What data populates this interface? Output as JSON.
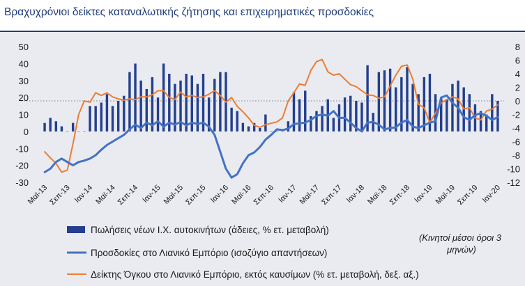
{
  "title": "Βραχυχρόνιοι δείκτες καταναλωτικής ζήτησης και επιχειρηματικές προσδοκίες",
  "note_line1": "(Κινητοί μέσοι όροι 3",
  "note_line2": "μηνών)",
  "colors": {
    "title": "#1f3d7a",
    "bars": "#243f8f",
    "expectations": "#4472c4",
    "volume": "#ed7d31",
    "reference": "#7f7f7f",
    "background": "#e9ebf0"
  },
  "chart_data": {
    "type": "bar",
    "y_left": {
      "min": -30,
      "max": 50,
      "ticks": [
        "50",
        "40",
        "30",
        "20",
        "10",
        "0",
        "-10",
        "-20",
        "-30"
      ]
    },
    "y_right": {
      "min": -12,
      "max": 8,
      "ticks": [
        "8",
        "6",
        "4",
        "2",
        "0",
        "-2",
        "-4",
        "-6",
        "-8",
        "-10",
        "-12"
      ]
    },
    "reference_line": {
      "axis": "right",
      "value": 0,
      "style": "dotted"
    },
    "x_tick_labels": [
      "Μαϊ-13",
      "Σεπ-13",
      "Ιαν-14",
      "Μαϊ-14",
      "Σεπ-14",
      "Ιαν-15",
      "Μαϊ-15",
      "Σεπ-15",
      "Ιαν-16",
      "Μαϊ-16",
      "Σεπ-16",
      "Ιαν-17",
      "Μαϊ-17",
      "Σεπ-17",
      "Ιαν-18",
      "Μαϊ-18",
      "Σεπ-18",
      "Ιαν-19",
      "Μαϊ-19",
      "Σεπ-19",
      "Ιαν-20"
    ],
    "x_tick_every": 4,
    "periods": 81,
    "series": [
      {
        "name": "Πωλήσεις νέων Ι.Χ. αυτοκινήτων (άδειες, % ετ. μεταβολή)",
        "type": "bar",
        "axis": "left",
        "values": [
          5,
          8,
          6,
          3,
          0,
          5,
          0,
          0,
          15,
          15,
          17,
          22,
          15,
          18,
          21,
          35,
          40,
          30,
          25,
          32,
          20,
          40,
          34,
          28,
          30,
          34,
          33,
          28,
          34,
          20,
          31,
          35,
          35,
          14,
          12,
          5,
          3,
          5,
          2,
          10,
          0,
          0,
          0,
          6,
          23,
          19,
          24,
          9,
          12,
          15,
          19,
          8,
          16,
          20,
          21,
          18,
          17,
          39,
          11,
          35,
          36,
          37,
          26,
          32,
          38,
          28,
          22,
          32,
          34,
          22,
          20,
          19,
          28,
          30,
          26,
          22,
          16,
          12,
          10,
          22,
          18
        ]
      },
      {
        "name": "Προσδοκίες στο Λιανικό Εμπόριο (ισοζύγιο απαντήσεων)",
        "type": "line",
        "axis": "right",
        "values": [
          -10.5,
          -10,
          -9,
          -8.5,
          -9,
          -9.5,
          -9,
          -8.8,
          -8.5,
          -8,
          -7.2,
          -6.5,
          -6,
          -5.5,
          -5,
          -4.2,
          -3.5,
          -4,
          -3.2,
          -3.6,
          -3,
          -3.8,
          -3.2,
          -3.5,
          -3.1,
          -3.6,
          -3.2,
          -3.4,
          -3.2,
          -3.8,
          -5,
          -7.5,
          -10,
          -11.3,
          -10.8,
          -9.2,
          -8,
          -7.6,
          -6.8,
          -5.7,
          -5,
          -4.2,
          -4.3,
          -4.1,
          -3.4,
          -3.3,
          -3.2,
          -2.8,
          -2.2,
          -2,
          -2.2,
          -1.5,
          -2.5,
          -2.5,
          -3.2,
          -4,
          -4.5,
          -3.2,
          -3.1,
          -3.5,
          -4.2,
          -4,
          -3.9,
          -3.2,
          -2.8,
          -3.8,
          -4,
          -3.6,
          -3.2,
          -3,
          0.5,
          0.8,
          -0.3,
          -1,
          -2.4,
          -2.8,
          -2.1,
          -1.8,
          -2.2,
          -2.8,
          -2.4
        ]
      },
      {
        "name": "Δείκτης Όγκου στο Λιανικό Εμπόριο, εκτός καυσίμων (% ετ. μεταβολή, δεξ. αξ.)",
        "type": "line",
        "axis": "right",
        "values": [
          -7.5,
          -8.4,
          -9.2,
          -10.5,
          -10.2,
          -6.3,
          -2,
          0,
          -0.2,
          1.2,
          0.8,
          1.2,
          0.6,
          0.3,
          0.1,
          0.3,
          0.2,
          0.6,
          0.6,
          0.9,
          1.5,
          1.5,
          0.5,
          0.2,
          1.3,
          0.6,
          0.8,
          0.5,
          0.6,
          1,
          1.5,
          0.8,
          -0.2,
          0.5,
          -0.8,
          -1.6,
          -2.5,
          -3.6,
          -3.9,
          -3.5,
          -3.3,
          -3.1,
          -2.5,
          0,
          1.2,
          2.5,
          2.3,
          4.5,
          5.8,
          6.1,
          4.3,
          3.8,
          4,
          3.2,
          2.4,
          2.1,
          1.5,
          0.9,
          0.8,
          0.4,
          0.6,
          2.2,
          3.8,
          5.1,
          5.3,
          3.2,
          -0.5,
          -1,
          -3.2,
          -1.8,
          -0.3,
          0.2,
          0.6,
          0.3,
          -1.2,
          -1,
          -2.5,
          -2.8,
          -1.5,
          -1.2,
          -0.6
        ]
      }
    ]
  }
}
